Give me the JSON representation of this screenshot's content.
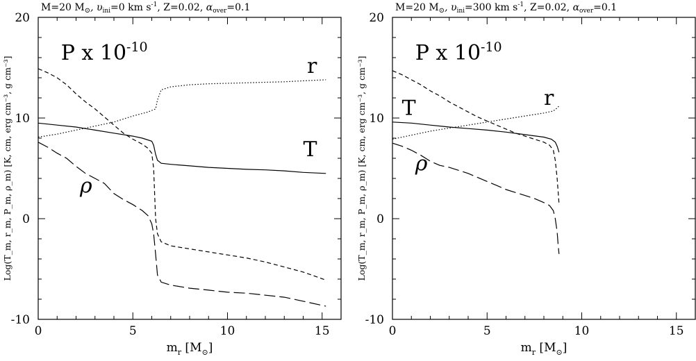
{
  "chart_data": [
    {
      "type": "line",
      "title": "M=20 M⊙, υini=0 km s⁻¹, Z=0.02, αover=0.1",
      "title_parts": {
        "prefix": "M=20 M",
        "sun": "⊙",
        "v_sym": ", υ",
        "v_sub": "ini",
        "v_val": "=0 km s",
        "v_exp": "-1",
        "z": ", Z=0.02, ",
        "a_sym": "α",
        "a_sub": "over",
        "a_val": "=0.1"
      },
      "xlabel": "m_r [M⊙]",
      "ylabel": "Log(T_m, r_m, P_m, ρ_m) [K, cm, erg cm⁻³, g cm⁻³]",
      "xlim": [
        0,
        16
      ],
      "ylim": [
        -10,
        20
      ],
      "x_ticks": [
        0,
        5,
        10,
        15
      ],
      "y_ticks": [
        -10,
        0,
        10,
        20
      ],
      "annotations": [
        {
          "text": "P x 10",
          "exp": "-10",
          "x": 1.2,
          "y": 15.8
        },
        {
          "text": "r",
          "x": 14.2,
          "y": 14.5
        },
        {
          "text": "T",
          "x": 14.0,
          "y": 6.2
        },
        {
          "text": "ρ",
          "x": 2.2,
          "y": 2.6
        }
      ],
      "series": [
        {
          "id": "P",
          "style": "short-dash",
          "x": [
            0,
            0.5,
            1,
            1.5,
            2,
            2.5,
            3,
            3.5,
            4,
            4.5,
            5,
            5.5,
            5.8,
            6.0,
            6.1,
            6.2,
            6.3,
            6.5,
            7,
            8,
            9,
            10,
            11,
            12,
            13,
            14,
            15.2
          ],
          "y": [
            14.9,
            14.5,
            14.0,
            13.3,
            12.4,
            11.6,
            10.9,
            10.1,
            9.3,
            8.5,
            7.9,
            7.4,
            7.0,
            6.5,
            5.0,
            0,
            -1.5,
            -2.3,
            -2.7,
            -3.0,
            -3.3,
            -3.6,
            -3.9,
            -4.3,
            -4.8,
            -5.3,
            -6.1
          ]
        },
        {
          "id": "r",
          "style": "dotted",
          "x": [
            0,
            1,
            2,
            3,
            4,
            5,
            5.8,
            6.2,
            6.3,
            6.5,
            7,
            8,
            9,
            10,
            11,
            12,
            13,
            14,
            15.2
          ],
          "y": [
            8.1,
            8.4,
            8.8,
            9.2,
            9.6,
            10.2,
            10.6,
            10.9,
            11.8,
            12.8,
            13.1,
            13.3,
            13.4,
            13.45,
            13.5,
            13.55,
            13.6,
            13.7,
            13.8
          ]
        },
        {
          "id": "T",
          "style": "solid",
          "x": [
            0,
            1,
            2,
            3,
            4,
            5,
            5.5,
            6.0,
            6.1,
            6.2,
            6.3,
            6.5,
            7,
            8,
            9,
            10,
            11,
            12,
            13,
            14,
            15.2
          ],
          "y": [
            9.5,
            9.3,
            9.1,
            8.8,
            8.5,
            8.2,
            8.0,
            7.7,
            7.3,
            6.4,
            5.8,
            5.5,
            5.4,
            5.25,
            5.1,
            5.0,
            4.9,
            4.85,
            4.75,
            4.6,
            4.5
          ]
        },
        {
          "id": "rho",
          "style": "long-dash",
          "x": [
            0,
            0.5,
            1,
            1.5,
            2,
            2.5,
            3,
            3.5,
            4,
            4.5,
            5,
            5.5,
            5.8,
            6.0,
            6.1,
            6.2,
            6.3,
            6.5,
            7,
            8,
            9,
            10,
            11,
            12,
            13,
            14,
            15.2
          ],
          "y": [
            7.6,
            7.1,
            6.5,
            6.0,
            5.2,
            4.5,
            4.0,
            3.5,
            2.5,
            1.9,
            1.4,
            0.8,
            0.3,
            -0.5,
            -1.5,
            -3.5,
            -5.6,
            -6.3,
            -6.6,
            -6.9,
            -7.1,
            -7.3,
            -7.4,
            -7.6,
            -7.8,
            -8.2,
            -8.7
          ]
        }
      ]
    },
    {
      "type": "line",
      "title": "M=20 M⊙, υini=300 km s⁻¹, Z=0.02, αover=0.1",
      "title_parts": {
        "prefix": "M=20 M",
        "sun": "⊙",
        "v_sym": ", υ",
        "v_sub": "ini",
        "v_val": "=300 km s",
        "v_exp": "-1",
        "z": ", Z=0.02, ",
        "a_sym": "α",
        "a_sub": "over",
        "a_val": "=0.1"
      },
      "xlabel": "m_r [M⊙]",
      "ylabel": "Log(T_m, r_m, P_m, ρ_m) [K, cm, erg cm⁻³, g cm⁻³]",
      "xlim": [
        0,
        16
      ],
      "ylim": [
        -10,
        20
      ],
      "x_ticks": [
        0,
        5,
        10,
        15
      ],
      "y_ticks": [
        -10,
        0,
        10,
        20
      ],
      "annotations": [
        {
          "text": "P x 10",
          "exp": "-10",
          "x": 1.2,
          "y": 15.8
        },
        {
          "text": "r",
          "x": 8.0,
          "y": 11.3
        },
        {
          "text": "T",
          "x": 0.5,
          "y": 10.3
        },
        {
          "text": "ρ",
          "x": 1.2,
          "y": 4.8
        }
      ],
      "series": [
        {
          "id": "P",
          "style": "short-dash",
          "x": [
            0,
            0.5,
            1,
            1.5,
            2,
            2.5,
            3,
            3.5,
            4,
            4.5,
            5,
            5.5,
            6,
            6.5,
            7,
            7.5,
            8,
            8.3,
            8.5,
            8.6,
            8.7,
            8.8
          ],
          "y": [
            14.7,
            14.3,
            13.8,
            13.3,
            12.7,
            12.2,
            11.6,
            11.1,
            10.6,
            10.1,
            9.7,
            9.3,
            8.9,
            8.5,
            8.2,
            7.9,
            7.6,
            7.3,
            6.8,
            5.8,
            4.0,
            1.5
          ]
        },
        {
          "id": "r",
          "style": "dotted",
          "x": [
            0,
            1,
            2,
            3,
            4,
            5,
            6,
            7,
            8,
            8.5,
            8.7,
            8.8
          ],
          "y": [
            7.9,
            8.3,
            8.7,
            9.0,
            9.3,
            9.6,
            9.9,
            10.2,
            10.5,
            10.7,
            11.0,
            11.2
          ]
        },
        {
          "id": "T",
          "style": "solid",
          "x": [
            0,
            1,
            2,
            3,
            4,
            5,
            6,
            7,
            8,
            8.4,
            8.6,
            8.7,
            8.8
          ],
          "y": [
            9.6,
            9.5,
            9.3,
            9.1,
            8.95,
            8.8,
            8.6,
            8.35,
            8.1,
            7.9,
            7.6,
            7.2,
            6.6
          ]
        },
        {
          "id": "rho",
          "style": "long-dash",
          "x": [
            0,
            0.5,
            1,
            1.5,
            2,
            2.5,
            3,
            3.5,
            4,
            4.5,
            5,
            5.5,
            6,
            6.5,
            7,
            7.5,
            8,
            8.3,
            8.5,
            8.6,
            8.7,
            8.75,
            8.8
          ],
          "y": [
            7.5,
            7.2,
            6.8,
            6.3,
            5.7,
            5.3,
            5.1,
            4.8,
            4.5,
            4.1,
            3.7,
            3.3,
            2.9,
            2.6,
            2.3,
            2.0,
            1.6,
            1.3,
            0.8,
            0,
            -1.3,
            -2.5,
            -3.5
          ]
        }
      ]
    }
  ]
}
